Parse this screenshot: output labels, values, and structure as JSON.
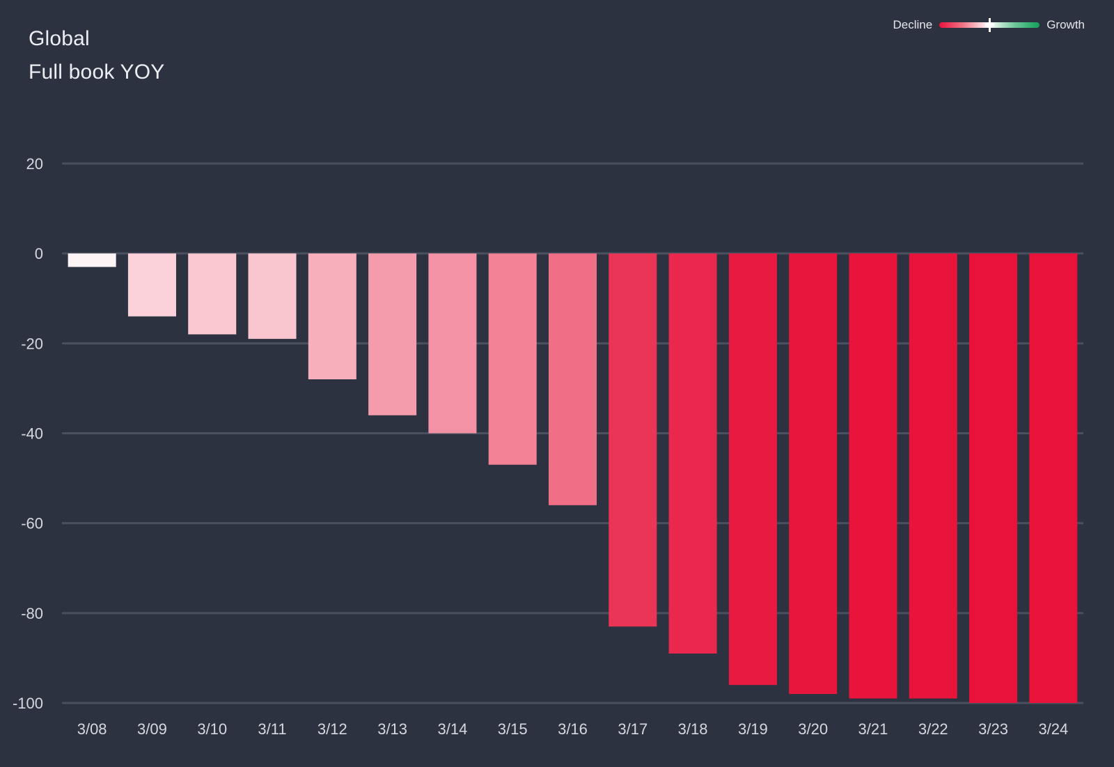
{
  "header": {
    "title_line1": "Global",
    "title_line2": "Full book YOY"
  },
  "legend": {
    "left_label": "Decline",
    "right_label": "Growth"
  },
  "colors": {
    "background": "#2d3240",
    "gridline": "#4a5060",
    "decline_strong": "#e8123a",
    "neutral": "#ffffff",
    "growth_strong": "#12a05a"
  },
  "chart_data": {
    "type": "bar",
    "title": "Global Full book YOY",
    "categories": [
      "3/08",
      "3/09",
      "3/10",
      "3/11",
      "3/12",
      "3/13",
      "3/14",
      "3/15",
      "3/16",
      "3/17",
      "3/18",
      "3/19",
      "3/20",
      "3/21",
      "3/22",
      "3/23",
      "3/24"
    ],
    "values": [
      -3,
      -14,
      -18,
      -19,
      -28,
      -36,
      -40,
      -47,
      -56,
      -83,
      -89,
      -96,
      -98,
      -99,
      -99,
      -100,
      -100
    ],
    "ylim": [
      -100,
      20
    ],
    "yticks": [
      20,
      0,
      -20,
      -40,
      -60,
      -80,
      -100
    ],
    "grid": true,
    "legend_position": "top-right",
    "color_scale": "diverging red-white-green (decline to growth)"
  }
}
